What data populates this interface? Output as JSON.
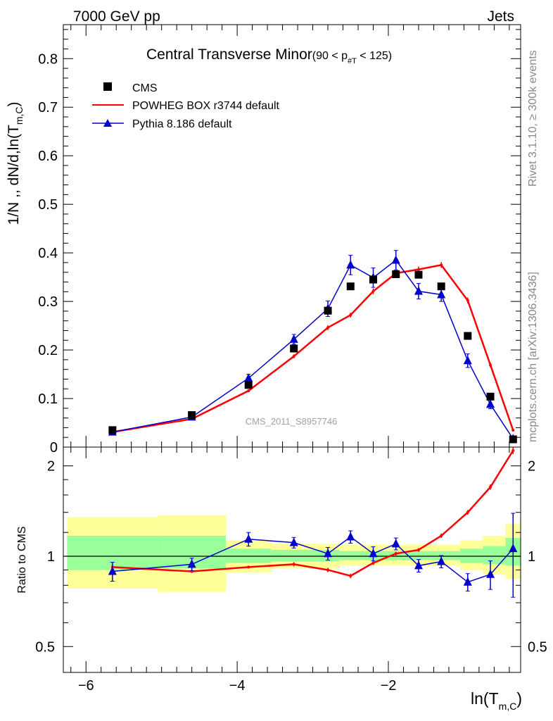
{
  "header": {
    "energy_label": "7000 GeV pp",
    "process_label": "Jets"
  },
  "side_text": {
    "rivet": "Rivet 3.1.10, ≥ 300k events",
    "mcplots": "mcplots.cern.ch [arXiv:1306.3436]"
  },
  "chart_data": [
    {
      "type": "line",
      "panel": "main",
      "title": "Central Transverse Minor",
      "title_cut_prefix": "(90 < p",
      "title_cut_sub": "#T",
      "title_cut_suffix": " < 125)",
      "ylabel": "1/N ,, dN/d,ln(T",
      "ylabel_sub": "m,C",
      "ylabel_suffix": ")",
      "xlabel": "ln(T",
      "xlabel_sub": "m,C",
      "xlabel_suffix": ")",
      "watermark": "CMS_2011_S8957746",
      "xlim": [
        -6.3,
        -0.25
      ],
      "ylim": [
        0,
        0.87
      ],
      "y_ticks": [
        0,
        0.1,
        0.2,
        0.3,
        0.4,
        0.5,
        0.6,
        0.7,
        0.8
      ],
      "y_tick_labels": [
        "0",
        "0.1",
        "0.2",
        "0.3",
        "0.4",
        "0.5",
        "0.6",
        "0.7",
        "0.8"
      ],
      "legend_position": "top-left",
      "series": [
        {
          "name": "CMS",
          "style": "markers",
          "color": "#000000",
          "x": [
            -5.65,
            -4.6,
            -3.85,
            -3.25,
            -2.8,
            -2.5,
            -2.2,
            -1.9,
            -1.6,
            -1.3,
            -0.95,
            -0.65,
            -0.35
          ],
          "y": [
            0.035,
            0.066,
            0.128,
            0.203,
            0.281,
            0.331,
            0.345,
            0.356,
            0.355,
            0.331,
            0.229,
            0.104,
            0.016
          ]
        },
        {
          "name": "POWHEG BOX r3744 default",
          "style": "line",
          "color": "#ff0000",
          "x": [
            -5.65,
            -4.6,
            -3.85,
            -3.25,
            -2.8,
            -2.5,
            -2.2,
            -1.9,
            -1.6,
            -1.3,
            -0.95,
            -0.65,
            -0.35
          ],
          "y": [
            0.031,
            0.058,
            0.116,
            0.187,
            0.246,
            0.272,
            0.321,
            0.358,
            0.366,
            0.375,
            0.302,
            0.169,
            0.035
          ],
          "err": [
            0.002,
            0.002,
            0.003,
            0.004,
            0.005,
            0.005,
            0.006,
            0.006,
            0.006,
            0.006,
            0.006,
            0.005,
            0.003
          ]
        },
        {
          "name": "Pythia 8.186 default",
          "style": "line-markers",
          "color": "#0000cc",
          "x": [
            -5.65,
            -4.6,
            -3.85,
            -3.25,
            -2.8,
            -2.5,
            -2.2,
            -1.9,
            -1.6,
            -1.3,
            -0.95,
            -0.65,
            -0.35
          ],
          "y": [
            0.031,
            0.062,
            0.142,
            0.222,
            0.285,
            0.375,
            0.349,
            0.385,
            0.321,
            0.314,
            0.178,
            0.088,
            0.017
          ],
          "err": [
            0.003,
            0.004,
            0.008,
            0.01,
            0.016,
            0.02,
            0.02,
            0.02,
            0.016,
            0.014,
            0.014,
            0.009,
            0.004
          ]
        }
      ]
    },
    {
      "type": "line",
      "panel": "ratio",
      "ylabel": "Ratio to CMS",
      "xlim": [
        -6.3,
        -0.25
      ],
      "ylim": [
        0.41,
        2.31
      ],
      "log_y": true,
      "x_ticks": [
        -6,
        -4,
        -2
      ],
      "x_tick_labels": [
        "−6",
        "−4",
        "−2"
      ],
      "y_ticks": [
        0.5,
        1,
        2
      ],
      "y_tick_labels": [
        "0.5",
        "1",
        "2"
      ],
      "reference_line": 1,
      "bands": [
        {
          "x_low": -6.25,
          "x_high": -5.05,
          "yellow": [
            0.78,
            1.35
          ],
          "green": [
            0.9,
            1.17
          ]
        },
        {
          "x_low": -5.05,
          "x_high": -4.15,
          "yellow": [
            0.76,
            1.37
          ],
          "green": [
            0.91,
            1.17
          ]
        },
        {
          "x_low": -4.15,
          "x_high": -3.55,
          "yellow": [
            0.88,
            1.13
          ],
          "green": [
            0.95,
            1.06
          ]
        },
        {
          "x_low": -3.55,
          "x_high": -2.65,
          "yellow": [
            0.91,
            1.1
          ],
          "green": [
            0.96,
            1.05
          ]
        },
        {
          "x_low": -2.65,
          "x_high": -1.05,
          "yellow": [
            0.93,
            1.09
          ],
          "green": [
            0.97,
            1.04
          ]
        },
        {
          "x_low": -1.05,
          "x_high": -0.75,
          "yellow": [
            0.9,
            1.13
          ],
          "green": [
            0.95,
            1.06
          ]
        },
        {
          "x_low": -0.75,
          "x_high": -0.45,
          "yellow": [
            0.87,
            1.17
          ],
          "green": [
            0.94,
            1.08
          ]
        },
        {
          "x_low": -0.45,
          "x_high": -0.25,
          "yellow": [
            0.84,
            1.28
          ],
          "green": [
            0.93,
            1.15
          ]
        }
      ],
      "series": [
        {
          "name": "POWHEG BOX r3744 default",
          "color": "#ff0000",
          "x": [
            -5.65,
            -4.6,
            -3.85,
            -3.25,
            -2.8,
            -2.5,
            -2.2,
            -1.9,
            -1.6,
            -1.3,
            -0.95,
            -0.65,
            -0.35
          ],
          "y": [
            0.92,
            0.89,
            0.92,
            0.94,
            0.9,
            0.86,
            0.95,
            1.02,
            1.05,
            1.17,
            1.4,
            1.7,
            2.25
          ],
          "err": [
            0.01,
            0.01,
            0.01,
            0.015,
            0.015,
            0.015,
            0.015,
            0.015,
            0.015,
            0.02,
            0.025,
            0.035,
            0.06
          ]
        },
        {
          "name": "Pythia 8.186 default",
          "color": "#0000cc",
          "x": [
            -5.65,
            -4.6,
            -3.85,
            -3.25,
            -2.8,
            -2.5,
            -2.2,
            -1.9,
            -1.6,
            -1.3,
            -0.95,
            -0.65,
            -0.35
          ],
          "y": [
            0.89,
            0.94,
            1.14,
            1.11,
            1.02,
            1.16,
            1.02,
            1.1,
            0.93,
            0.96,
            0.82,
            0.87,
            1.06
          ],
          "err": [
            0.065,
            0.045,
            0.06,
            0.045,
            0.05,
            0.055,
            0.055,
            0.05,
            0.045,
            0.045,
            0.055,
            0.095,
            0.33
          ]
        }
      ]
    }
  ]
}
